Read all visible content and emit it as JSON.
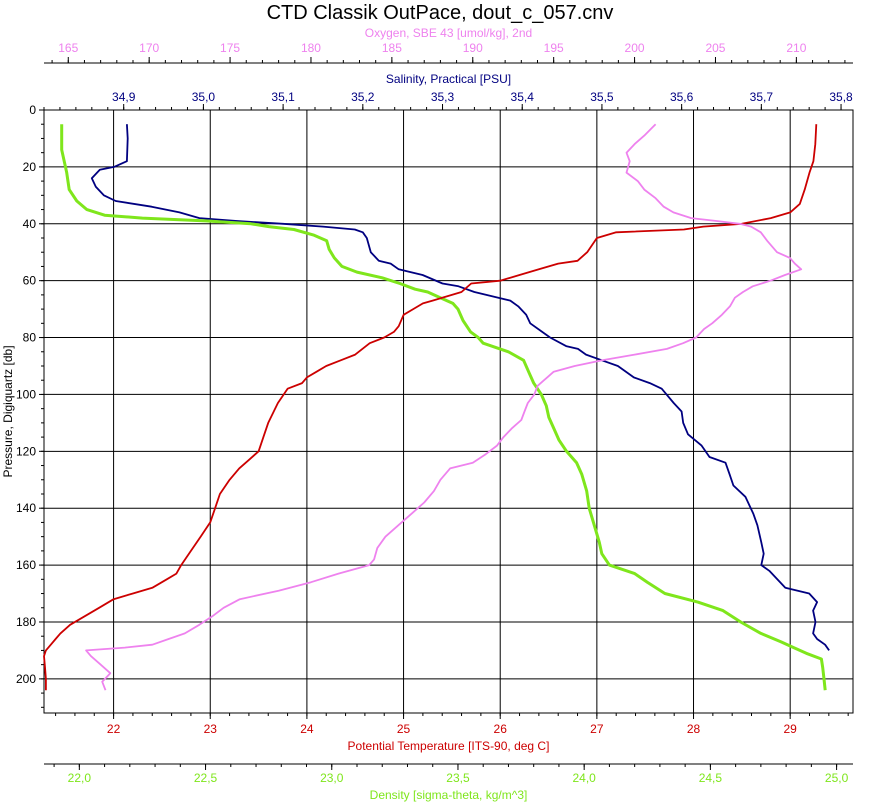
{
  "chart_data": {
    "type": "line",
    "title": "CTD Classik OutPace, dout_c_057.cnv",
    "y_axis": {
      "label": "Pressure, Digiquartz [db]",
      "range": [
        0,
        212
      ],
      "ticks": [
        0,
        20,
        40,
        60,
        80,
        100,
        120,
        140,
        160,
        180,
        200
      ],
      "inverted": true
    },
    "x_axes": [
      {
        "id": "oxygen",
        "label": "Oxygen, SBE 43 [umol/kg], 2nd",
        "color": "#ee82ee",
        "position": "top-1",
        "range": [
          163.5,
          213.5
        ],
        "ticks": [
          165,
          170,
          175,
          180,
          185,
          190,
          195,
          200,
          205,
          210
        ],
        "tick_labels": [
          "165",
          "170",
          "175",
          "180",
          "185",
          "190",
          "195",
          "200",
          "205",
          "210"
        ]
      },
      {
        "id": "salinity",
        "label": "Salinity, Practical [PSU]",
        "color": "#000080",
        "position": "top-2",
        "range": [
          34.8,
          35.815
        ],
        "ticks": [
          34.9,
          35.0,
          35.1,
          35.2,
          35.3,
          35.4,
          35.5,
          35.6,
          35.7,
          35.8
        ],
        "tick_labels": [
          "34,9",
          "35,0",
          "35,1",
          "35,2",
          "35,3",
          "35,4",
          "35,5",
          "35,6",
          "35,7",
          "35,8"
        ]
      },
      {
        "id": "temperature",
        "label": "Potential Temperature [ITS-90, deg C]",
        "color": "#cc0000",
        "position": "bottom-1",
        "range": [
          21.28,
          29.65
        ],
        "ticks": [
          22,
          23,
          24,
          25,
          26,
          27,
          28,
          29
        ],
        "tick_labels": [
          "22",
          "23",
          "24",
          "25",
          "26",
          "27",
          "28",
          "29"
        ]
      },
      {
        "id": "density",
        "label": "Density [sigma-theta, kg/m^3]",
        "color": "#7fe61c",
        "position": "bottom-2",
        "range": [
          21.86,
          25.065
        ],
        "ticks": [
          22.0,
          22.5,
          23.0,
          23.5,
          24.0,
          24.5,
          25.0
        ],
        "tick_labels": [
          "22,0",
          "22,5",
          "23,0",
          "23,5",
          "24,0",
          "24,5",
          "25,0"
        ]
      }
    ],
    "grid": true,
    "series": [
      {
        "axis": "salinity",
        "color": "#000080",
        "points": [
          [
            34.904,
            5
          ],
          [
            34.905,
            10
          ],
          [
            34.904,
            18
          ],
          [
            34.888,
            20
          ],
          [
            34.87,
            21
          ],
          [
            34.86,
            24
          ],
          [
            34.865,
            27
          ],
          [
            34.875,
            30
          ],
          [
            34.89,
            32
          ],
          [
            34.935,
            34
          ],
          [
            34.97,
            36
          ],
          [
            34.995,
            38
          ],
          [
            35.04,
            39
          ],
          [
            35.1,
            40
          ],
          [
            35.15,
            41
          ],
          [
            35.19,
            42
          ],
          [
            35.2,
            43
          ],
          [
            35.205,
            45
          ],
          [
            35.21,
            50
          ],
          [
            35.22,
            53
          ],
          [
            35.235,
            54
          ],
          [
            35.245,
            56
          ],
          [
            35.26,
            57
          ],
          [
            35.275,
            58
          ],
          [
            35.3,
            61
          ],
          [
            35.32,
            62
          ],
          [
            35.34,
            64
          ],
          [
            35.37,
            66
          ],
          [
            35.385,
            67
          ],
          [
            35.395,
            69
          ],
          [
            35.405,
            72
          ],
          [
            35.41,
            75
          ],
          [
            35.425,
            78
          ],
          [
            35.435,
            80
          ],
          [
            35.455,
            83
          ],
          [
            35.47,
            84
          ],
          [
            35.48,
            86
          ],
          [
            35.5,
            88
          ],
          [
            35.52,
            90
          ],
          [
            35.54,
            94
          ],
          [
            35.56,
            96
          ],
          [
            35.575,
            98
          ],
          [
            35.59,
            103
          ],
          [
            35.6,
            106
          ],
          [
            35.602,
            110
          ],
          [
            35.608,
            114
          ],
          [
            35.625,
            118
          ],
          [
            35.635,
            122
          ],
          [
            35.655,
            124
          ],
          [
            35.66,
            128
          ],
          [
            35.665,
            132
          ],
          [
            35.68,
            136
          ],
          [
            35.69,
            142
          ],
          [
            35.695,
            146
          ],
          [
            35.7,
            152
          ],
          [
            35.703,
            156
          ],
          [
            35.7,
            160
          ],
          [
            35.71,
            162
          ],
          [
            35.72,
            165
          ],
          [
            35.73,
            168
          ],
          [
            35.76,
            170
          ],
          [
            35.77,
            173
          ],
          [
            35.765,
            176
          ],
          [
            35.768,
            180
          ],
          [
            35.765,
            184
          ],
          [
            35.77,
            186
          ],
          [
            35.78,
            188
          ],
          [
            35.785,
            190
          ]
        ]
      },
      {
        "axis": "density",
        "color": "#7fe61c",
        "points": [
          [
            21.93,
            5
          ],
          [
            21.93,
            14
          ],
          [
            21.94,
            18
          ],
          [
            21.95,
            22
          ],
          [
            21.96,
            28
          ],
          [
            21.99,
            32
          ],
          [
            22.03,
            35
          ],
          [
            22.1,
            37
          ],
          [
            22.25,
            38
          ],
          [
            22.5,
            39
          ],
          [
            22.68,
            40
          ],
          [
            22.75,
            41
          ],
          [
            22.85,
            42
          ],
          [
            22.93,
            44
          ],
          [
            22.98,
            46
          ],
          [
            22.99,
            49
          ],
          [
            23.01,
            52
          ],
          [
            23.04,
            55
          ],
          [
            23.1,
            57
          ],
          [
            23.2,
            59
          ],
          [
            23.27,
            61
          ],
          [
            23.33,
            63
          ],
          [
            23.38,
            64
          ],
          [
            23.43,
            66
          ],
          [
            23.48,
            68
          ],
          [
            23.5,
            70
          ],
          [
            23.52,
            74
          ],
          [
            23.55,
            78
          ],
          [
            23.58,
            80
          ],
          [
            23.6,
            82
          ],
          [
            23.7,
            85
          ],
          [
            23.76,
            88
          ],
          [
            23.78,
            92
          ],
          [
            23.8,
            96
          ],
          [
            23.83,
            100
          ],
          [
            23.85,
            104
          ],
          [
            23.86,
            108
          ],
          [
            23.88,
            112
          ],
          [
            23.9,
            116
          ],
          [
            23.93,
            120
          ],
          [
            23.97,
            124
          ],
          [
            23.99,
            128
          ],
          [
            24.01,
            134
          ],
          [
            24.02,
            140
          ],
          [
            24.04,
            146
          ],
          [
            24.06,
            152
          ],
          [
            24.07,
            156
          ],
          [
            24.1,
            160
          ],
          [
            24.2,
            163
          ],
          [
            24.25,
            166
          ],
          [
            24.32,
            170
          ],
          [
            24.45,
            173
          ],
          [
            24.55,
            176
          ],
          [
            24.62,
            180
          ],
          [
            24.7,
            184
          ],
          [
            24.78,
            187
          ],
          [
            24.83,
            189
          ],
          [
            24.88,
            191
          ],
          [
            24.94,
            193
          ],
          [
            24.945,
            196
          ],
          [
            24.95,
            200
          ],
          [
            24.955,
            204
          ]
        ]
      },
      {
        "axis": "temperature",
        "color": "#cc0000",
        "points": [
          [
            29.27,
            5
          ],
          [
            29.26,
            12
          ],
          [
            29.24,
            18
          ],
          [
            29.2,
            22
          ],
          [
            29.15,
            28
          ],
          [
            29.1,
            33
          ],
          [
            29.0,
            36
          ],
          [
            28.8,
            38
          ],
          [
            28.5,
            40
          ],
          [
            28.1,
            41
          ],
          [
            27.9,
            42
          ],
          [
            27.2,
            43
          ],
          [
            27.0,
            45
          ],
          [
            26.9,
            50
          ],
          [
            26.8,
            53
          ],
          [
            26.6,
            54
          ],
          [
            26.4,
            56
          ],
          [
            26.2,
            58
          ],
          [
            26.0,
            60
          ],
          [
            25.7,
            61
          ],
          [
            25.6,
            64
          ],
          [
            25.4,
            66
          ],
          [
            25.3,
            67
          ],
          [
            25.2,
            68
          ],
          [
            25.1,
            70
          ],
          [
            25.0,
            72
          ],
          [
            24.95,
            76
          ],
          [
            24.9,
            78
          ],
          [
            24.8,
            80
          ],
          [
            24.65,
            82
          ],
          [
            24.5,
            86
          ],
          [
            24.35,
            88
          ],
          [
            24.2,
            90
          ],
          [
            24.1,
            92
          ],
          [
            24.0,
            94
          ],
          [
            23.95,
            96
          ],
          [
            23.8,
            98
          ],
          [
            23.7,
            103
          ],
          [
            23.6,
            110
          ],
          [
            23.55,
            115
          ],
          [
            23.5,
            120
          ],
          [
            23.4,
            123
          ],
          [
            23.3,
            126
          ],
          [
            23.2,
            130
          ],
          [
            23.1,
            135
          ],
          [
            23.05,
            140
          ],
          [
            23.0,
            145
          ],
          [
            22.9,
            150
          ],
          [
            22.8,
            155
          ],
          [
            22.7,
            160
          ],
          [
            22.65,
            163
          ],
          [
            22.55,
            165
          ],
          [
            22.4,
            168
          ],
          [
            22.2,
            170
          ],
          [
            22.0,
            172
          ],
          [
            21.85,
            175
          ],
          [
            21.7,
            178
          ],
          [
            21.55,
            181
          ],
          [
            21.45,
            184
          ],
          [
            21.4,
            186
          ],
          [
            21.35,
            188
          ],
          [
            21.3,
            190
          ],
          [
            21.28,
            192
          ],
          [
            21.29,
            196
          ],
          [
            21.3,
            200
          ],
          [
            21.3,
            204
          ]
        ]
      },
      {
        "axis": "oxygen",
        "color": "#ee82ee",
        "points": [
          [
            201.3,
            5
          ],
          [
            200.6,
            9
          ],
          [
            200.0,
            12
          ],
          [
            199.5,
            15
          ],
          [
            199.7,
            18
          ],
          [
            199.5,
            22
          ],
          [
            200.2,
            25
          ],
          [
            200.6,
            28
          ],
          [
            201.3,
            31
          ],
          [
            201.8,
            34
          ],
          [
            202.4,
            36
          ],
          [
            203.5,
            38
          ],
          [
            205.0,
            39
          ],
          [
            206.5,
            40
          ],
          [
            207.2,
            41
          ],
          [
            207.8,
            43
          ],
          [
            208.2,
            46
          ],
          [
            208.8,
            50
          ],
          [
            209.6,
            52
          ],
          [
            209.9,
            54
          ],
          [
            210.3,
            56
          ],
          [
            209.3,
            58
          ],
          [
            208.4,
            60
          ],
          [
            207.3,
            62
          ],
          [
            206.7,
            64
          ],
          [
            206.2,
            66
          ],
          [
            205.9,
            69
          ],
          [
            205.4,
            72
          ],
          [
            204.8,
            75
          ],
          [
            204.3,
            77
          ],
          [
            203.8,
            80
          ],
          [
            203.0,
            82
          ],
          [
            202.0,
            84
          ],
          [
            200.0,
            86
          ],
          [
            198.0,
            88
          ],
          [
            196.3,
            90
          ],
          [
            195.0,
            92
          ],
          [
            194.6,
            94
          ],
          [
            194.0,
            97
          ],
          [
            193.8,
            100
          ],
          [
            193.4,
            103
          ],
          [
            193.2,
            106
          ],
          [
            193.0,
            109
          ],
          [
            192.4,
            112
          ],
          [
            191.9,
            115
          ],
          [
            191.5,
            118
          ],
          [
            190.8,
            121
          ],
          [
            190.0,
            124
          ],
          [
            188.6,
            126
          ],
          [
            188.0,
            130
          ],
          [
            187.6,
            134
          ],
          [
            187.0,
            138
          ],
          [
            186.2,
            142
          ],
          [
            185.4,
            146
          ],
          [
            184.6,
            150
          ],
          [
            184.1,
            154
          ],
          [
            183.9,
            158
          ],
          [
            183.6,
            160
          ],
          [
            181.7,
            163
          ],
          [
            180.0,
            166
          ],
          [
            178.0,
            169
          ],
          [
            175.6,
            172
          ],
          [
            174.6,
            175
          ],
          [
            173.9,
            178
          ],
          [
            173.1,
            181
          ],
          [
            172.2,
            184
          ],
          [
            171.2,
            186
          ],
          [
            170.2,
            188
          ],
          [
            168.5,
            189
          ],
          [
            166.1,
            190
          ],
          [
            166.4,
            192
          ],
          [
            167.0,
            195
          ],
          [
            167.6,
            198
          ],
          [
            167.1,
            201
          ],
          [
            167.3,
            204
          ]
        ]
      }
    ]
  }
}
